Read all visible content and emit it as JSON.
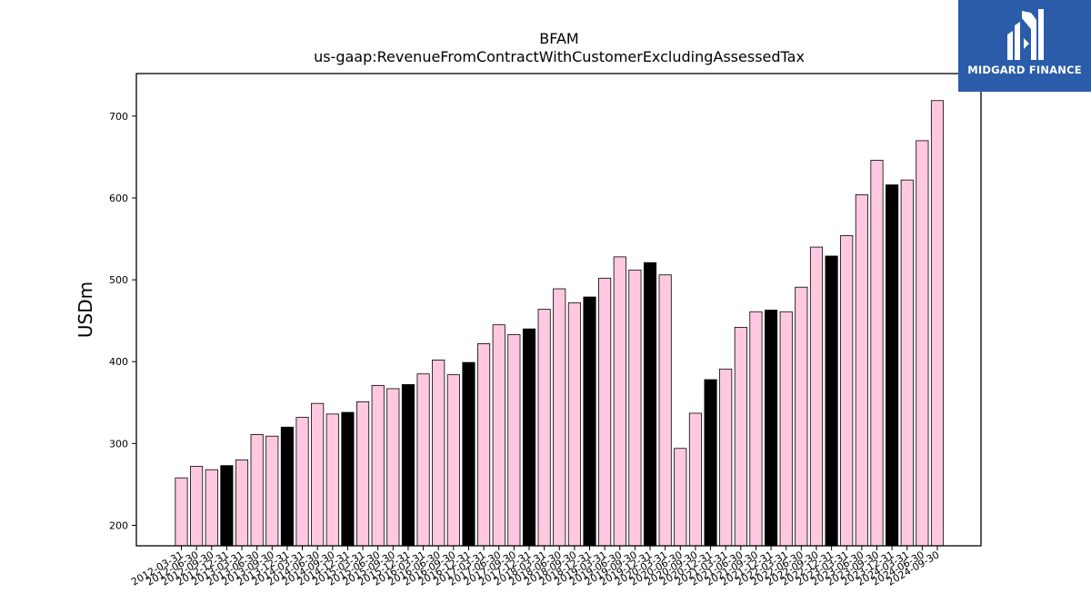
{
  "chart_data": {
    "type": "bar",
    "title": "BFAM",
    "subtitle": "us-gaap:RevenueFromContractWithCustomerExcludingAssessedTax",
    "xlabel": "",
    "ylabel": "USDm",
    "ylim": [
      175,
      752
    ],
    "yticks": [
      200,
      300,
      400,
      500,
      600,
      700
    ],
    "grid": false,
    "bar_colors": {
      "normal": "#ffc8e0",
      "highlight": "#000000",
      "edge": "#000000"
    },
    "categories": [
      "2012-03-31",
      "2012-06-30",
      "2012-09-30",
      "2012-12-31",
      "2013-03-31",
      "2013-06-30",
      "2013-09-30",
      "2013-12-31",
      "2014-03-31",
      "2014-06-30",
      "2014-09-30",
      "2014-12-31",
      "2015-03-31",
      "2015-06-30",
      "2015-09-30",
      "2015-12-31",
      "2016-03-31",
      "2016-06-30",
      "2016-09-30",
      "2016-12-31",
      "2017-03-31",
      "2017-06-30",
      "2017-09-30",
      "2017-12-31",
      "2018-03-31",
      "2018-06-30",
      "2018-09-30",
      "2018-12-31",
      "2019-03-31",
      "2019-06-30",
      "2019-09-30",
      "2019-12-31",
      "2020-03-31",
      "2020-06-30",
      "2020-09-30",
      "2020-12-31",
      "2021-03-31",
      "2021-06-30",
      "2021-09-30",
      "2021-12-31",
      "2022-03-31",
      "2022-06-30",
      "2022-09-30",
      "2022-12-31",
      "2023-03-31",
      "2023-06-30",
      "2023-09-30",
      "2023-12-31",
      "2024-03-31",
      "2024-06-30",
      "2024-09-30"
    ],
    "values": [
      258,
      272,
      268,
      273,
      280,
      311,
      309,
      320,
      332,
      349,
      336,
      338,
      351,
      371,
      367,
      372,
      385,
      402,
      384,
      399,
      422,
      445,
      433,
      440,
      464,
      489,
      472,
      479,
      502,
      528,
      512,
      521,
      506,
      294,
      337,
      378,
      391,
      442,
      461,
      463,
      461,
      491,
      540,
      529,
      554,
      604,
      646,
      616,
      622,
      670,
      719
    ],
    "highlight": [
      false,
      false,
      false,
      true,
      false,
      false,
      false,
      true,
      false,
      false,
      false,
      true,
      false,
      false,
      false,
      true,
      false,
      false,
      false,
      true,
      false,
      false,
      false,
      true,
      false,
      false,
      false,
      true,
      false,
      false,
      false,
      true,
      false,
      false,
      false,
      true,
      false,
      false,
      false,
      true,
      false,
      false,
      false,
      true,
      false,
      false,
      false,
      true,
      false,
      false,
      false
    ]
  },
  "logo": {
    "text": "MIDGARD FINANCE",
    "icon": "midgard-logo-icon",
    "color": "#2a5caa"
  }
}
